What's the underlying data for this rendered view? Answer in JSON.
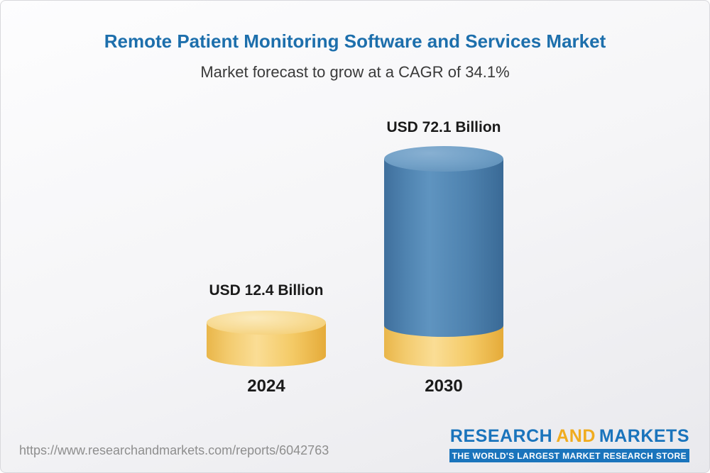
{
  "chart_data": {
    "type": "bar",
    "title": "Remote Patient Monitoring Software and Services Market",
    "subtitle": "Market forecast to grow at a CAGR of 34.1%",
    "cagr_percent": 34.1,
    "unit": "USD Billion",
    "categories": [
      "2024",
      "2030"
    ],
    "values": [
      12.4,
      72.1
    ],
    "value_labels": [
      "USD 12.4 Billion",
      "USD 72.1 Billion"
    ],
    "legend": "none",
    "grid": "off",
    "bar_style": "3d-cylinder",
    "colors": {
      "title_text": "#1D6FAC",
      "bar_2024": "#F5CA67",
      "bar_2030": "#4E82AF",
      "bar_2030_base": "#F5CA67"
    }
  },
  "footer": {
    "url": "https://www.researchandmarkets.com/reports/6042763",
    "logo": {
      "research": "RESEARCH",
      "and": "AND",
      "markets": "MARKETS",
      "tagline": "THE WORLD'S LARGEST MARKET RESEARCH STORE"
    }
  }
}
